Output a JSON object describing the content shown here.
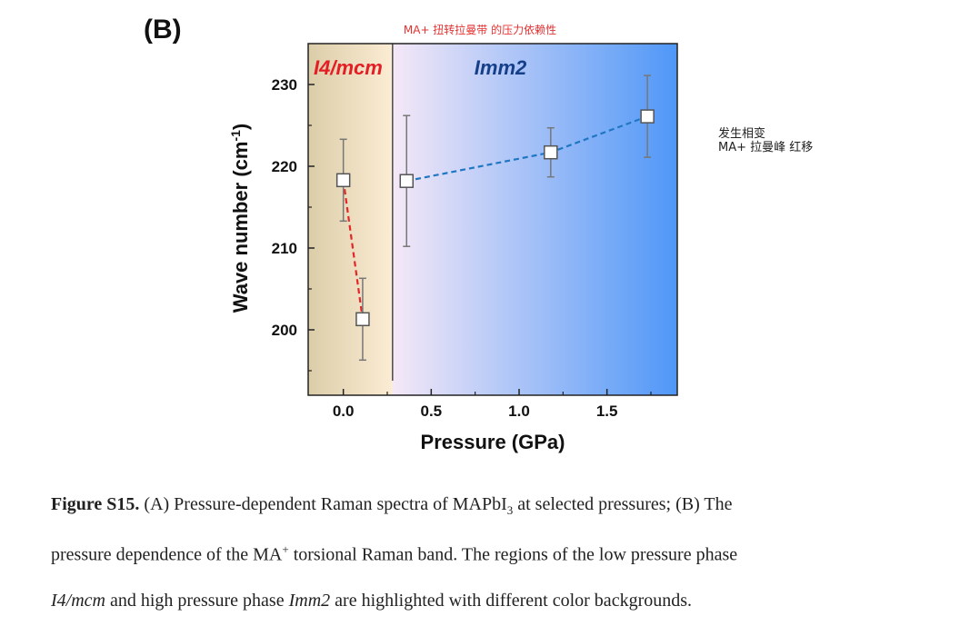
{
  "panel_label": "(B)",
  "annotation_top": "MA+ 扭转拉曼带 的压力依赖性",
  "annotation_side": [
    "发生相变",
    "MA+ 拉曼峰 红移"
  ],
  "chart_data": {
    "type": "scatter",
    "title": "",
    "xlabel": "Pressure (GPa)",
    "ylabel": "Wave number (cm",
    "ylabel_sup": "-1",
    "ylabel_end": ")",
    "xlim": [
      -0.2,
      1.9
    ],
    "ylim": [
      192,
      235
    ],
    "xticks": [
      0.0,
      0.5,
      1.0,
      1.5
    ],
    "xtick_labels": [
      "0.0",
      "0.5",
      "1.0",
      "1.5"
    ],
    "yticks": [
      200,
      210,
      220,
      230
    ],
    "ytick_labels": [
      "200",
      "210",
      "220",
      "230"
    ],
    "phase_boundary": 0.28,
    "regions": [
      {
        "label": "I4/mcm",
        "from": -0.2,
        "to": 0.28,
        "color_from": "#dccda9",
        "color_to": "#fbecd4",
        "label_color": "#e31e24"
      },
      {
        "label": "Imm2",
        "from": 0.28,
        "to": 1.9,
        "color_from": "#f5e8f7",
        "color_to": "#4f97f7",
        "label_color": "#163f8a"
      }
    ],
    "series": [
      {
        "phase": "I4/mcm",
        "line_color": "#e42628",
        "x": [
          0.0,
          0.11
        ],
        "y": [
          218.3,
          201.3
        ],
        "err": [
          5.0,
          5.0
        ]
      },
      {
        "phase": "Imm2",
        "line_color": "#1f77c4",
        "x": [
          0.36,
          1.18,
          1.73
        ],
        "y": [
          218.2,
          221.7,
          226.1
        ],
        "err": [
          8.0,
          3.0,
          5.0
        ]
      }
    ]
  },
  "caption": {
    "line1_bold": "Figure S15.",
    "line1_a": " (A) Pressure-dependent Raman spectra of MAPbI",
    "line1_sub": "3",
    "line1_b": " at selected pressures; (B) The",
    "line2_a": "pressure dependence of the MA",
    "line2_sup": "+",
    "line2_b": " torsional Raman band. The regions of the low pressure phase",
    "line3_ital1": "I4/mcm",
    "line3_a": " and high pressure phase ",
    "line3_ital2": "Imm2",
    "line3_b": " are highlighted with different color backgrounds."
  }
}
